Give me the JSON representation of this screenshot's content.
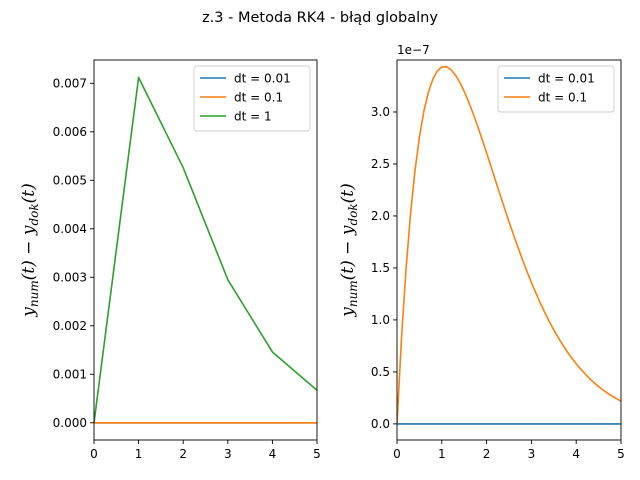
{
  "figure": {
    "title": "z.3 - Metoda RK4 - błąd globalny"
  },
  "chart_data": [
    {
      "type": "line",
      "ylabel_main": "y",
      "ylabel_sub1": "num",
      "ylabel_mid": "(t) − y",
      "ylabel_sub2": "dok",
      "ylabel_end": "(t)",
      "xlim": [
        0,
        5
      ],
      "ylim": [
        -0.000355,
        0.00748
      ],
      "x_ticks": [
        0,
        1,
        2,
        3,
        4,
        5
      ],
      "x_tick_labels": [
        "0",
        "1",
        "2",
        "3",
        "4",
        "5"
      ],
      "y_ticks": [
        0,
        0.001,
        0.002,
        0.003,
        0.004,
        0.005,
        0.006,
        0.007
      ],
      "y_tick_labels": [
        "0.000",
        "0.001",
        "0.002",
        "0.003",
        "0.004",
        "0.005",
        "0.006",
        "0.007"
      ],
      "offset_text": "",
      "grid": false,
      "legend_position": "top-right",
      "series": [
        {
          "name": "dt = 0.01",
          "color": "#1f77b4",
          "x": [
            0,
            5
          ],
          "y": [
            0,
            0
          ]
        },
        {
          "name": "dt = 0.1",
          "color": "#ff7f0e",
          "x": [
            0,
            5
          ],
          "y": [
            0,
            0
          ]
        },
        {
          "name": "dt = 1",
          "color": "#2ca02c",
          "x": [
            0,
            1,
            2,
            3,
            4,
            5
          ],
          "y": [
            0,
            0.00712,
            0.00526,
            0.00295,
            0.00146,
            0.00067
          ]
        }
      ]
    },
    {
      "type": "line",
      "ylabel_main": "y",
      "ylabel_sub1": "num",
      "ylabel_mid": "(t) − y",
      "ylabel_sub2": "dok",
      "ylabel_end": "(t)",
      "xlim": [
        0,
        5
      ],
      "ylim": [
        -0.155,
        3.5
      ],
      "x_ticks": [
        0,
        1,
        2,
        3,
        4,
        5
      ],
      "x_tick_labels": [
        "0",
        "1",
        "2",
        "3",
        "4",
        "5"
      ],
      "y_ticks": [
        0,
        0.5,
        1.0,
        1.5,
        2.0,
        2.5,
        3.0
      ],
      "y_tick_labels": [
        "0.0",
        "0.5",
        "1.0",
        "1.5",
        "2.0",
        "2.5",
        "3.0"
      ],
      "offset_text": "1e−7",
      "grid": false,
      "legend_position": "top-right",
      "series": [
        {
          "name": "dt = 0.01",
          "color": "#1f77b4",
          "x": [
            0,
            5
          ],
          "y": [
            0,
            0
          ]
        },
        {
          "name": "dt = 0.1",
          "color": "#ff7f0e",
          "x": [
            0,
            0.1,
            0.2,
            0.3,
            0.4,
            0.5,
            0.6,
            0.7,
            0.8,
            0.9,
            1.0,
            1.1,
            1.2,
            1.3,
            1.4,
            1.5,
            1.6,
            1.7,
            1.8,
            1.9,
            2.0,
            2.1,
            2.2,
            2.3,
            2.4,
            2.5,
            2.6,
            2.7,
            2.8,
            2.9,
            3.0,
            3.1,
            3.2,
            3.3,
            3.4,
            3.5,
            3.6,
            3.7,
            3.8,
            3.9,
            4.0,
            4.1,
            4.2,
            4.3,
            4.4,
            4.5,
            4.6,
            4.7,
            4.8,
            4.9,
            5.0
          ],
          "y": [
            0,
            0.819,
            1.481,
            2.011,
            2.431,
            2.758,
            3.007,
            3.19,
            3.316,
            3.395,
            3.433,
            3.436,
            3.409,
            3.358,
            3.286,
            3.198,
            3.096,
            2.984,
            2.863,
            2.737,
            2.606,
            2.473,
            2.339,
            2.206,
            2.074,
            1.945,
            1.819,
            1.697,
            1.58,
            1.467,
            1.36,
            1.258,
            1.161,
            1.07,
            0.984,
            0.904,
            0.829,
            0.759,
            0.694,
            0.634,
            0.578,
            0.527,
            0.48,
            0.436,
            0.396,
            0.36,
            0.326,
            0.295,
            0.268,
            0.242,
            0.219
          ]
        }
      ]
    }
  ]
}
